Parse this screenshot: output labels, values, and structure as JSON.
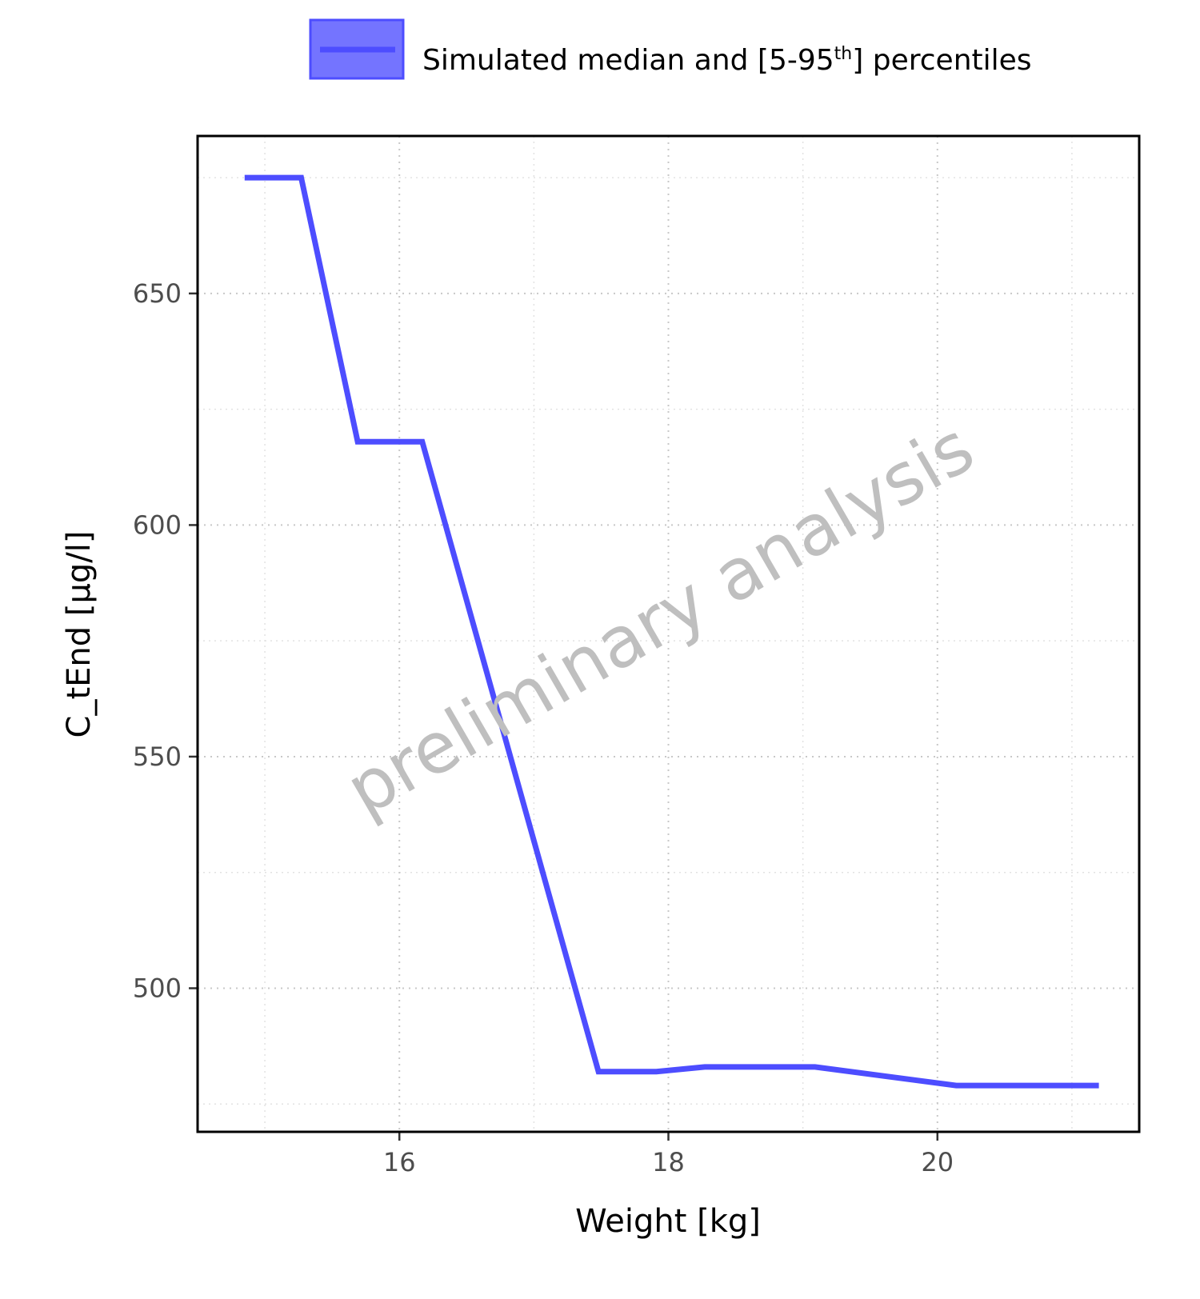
{
  "chart_data": {
    "type": "line",
    "xlabel": "Weight [kg]",
    "ylabel": "C_tEnd [µg/l]",
    "xlim": [
      14.5,
      21.5
    ],
    "ylim": [
      469,
      684
    ],
    "x_ticks": [
      16,
      18,
      20
    ],
    "y_ticks": [
      500,
      550,
      600,
      650
    ],
    "x_minor_ticks": [
      15,
      17,
      19,
      21
    ],
    "y_minor_ticks": [
      475,
      525,
      575,
      625,
      675
    ],
    "grid": true,
    "legend_position": "top",
    "legend": {
      "label_main": "Simulated median and [5-95",
      "label_sup": "th",
      "label_end": "] percentiles"
    },
    "watermark": "preliminary analysis",
    "series": [
      {
        "name": "Simulated median and [5-95th] percentiles",
        "color": "#4d4dff",
        "x": [
          14.85,
          15.27,
          15.69,
          16.17,
          17.48,
          17.91,
          18.27,
          19.09,
          20.14,
          21.2
        ],
        "y": [
          675,
          675,
          618,
          618,
          482,
          482,
          483,
          483,
          479,
          479
        ]
      }
    ]
  }
}
